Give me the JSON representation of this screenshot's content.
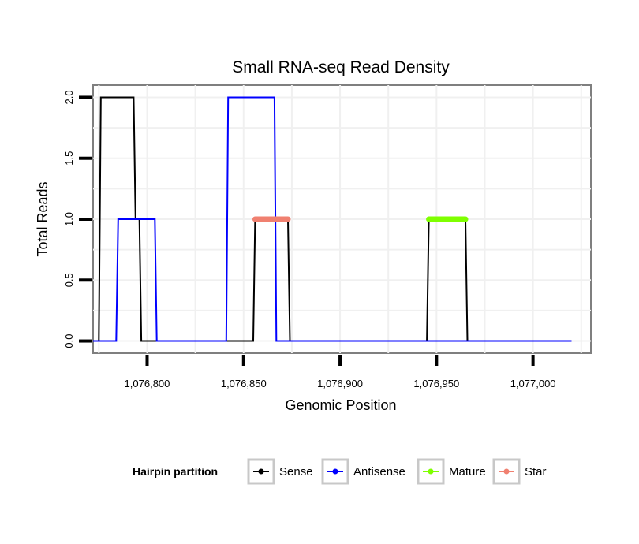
{
  "chart_data": {
    "type": "line",
    "title": "Small RNA-seq Read Density",
    "xlabel": "Genomic Position",
    "ylabel": "Total Reads",
    "xlim": [
      1076772,
      1077030
    ],
    "ylim": [
      -0.1,
      2.1
    ],
    "x_ticks": [
      1076800,
      1076850,
      1076900,
      1076950,
      1077000
    ],
    "x_tick_labels": [
      "1,076,800",
      "1,076,850",
      "1,076,900",
      "1,076,950",
      "1,077,000"
    ],
    "y_ticks": [
      0,
      0.5,
      1,
      1.5,
      2
    ],
    "y_tick_labels": [
      "0.0",
      "0.5",
      "1.0",
      "1.5",
      "2.0"
    ],
    "grid": true,
    "legend": {
      "title": "Hairpin partition",
      "position": "bottom",
      "entries": [
        "Sense",
        "Antisense",
        "Mature",
        "Star"
      ]
    },
    "series": [
      {
        "name": "Sense",
        "color": "#000000",
        "kind": "line",
        "x": [
          1076772,
          1076775,
          1076776,
          1076793,
          1076794,
          1076796,
          1076797,
          1076828,
          1076829,
          1076855,
          1076856,
          1076873,
          1076874,
          1076945,
          1076946,
          1076965,
          1076966,
          1077020
        ],
        "y": [
          0,
          0,
          2,
          2,
          1,
          1,
          0,
          0,
          0,
          0,
          1,
          1,
          0,
          0,
          1,
          1,
          0,
          0
        ]
      },
      {
        "name": "Antisense",
        "color": "#0000ff",
        "kind": "line",
        "x": [
          1076772,
          1076784,
          1076785,
          1076804,
          1076805,
          1076841,
          1076842,
          1076866,
          1076867,
          1076945,
          1076946,
          1076965,
          1076966,
          1077020
        ],
        "y": [
          0,
          0,
          1,
          1,
          0,
          0,
          2,
          2,
          0,
          0,
          0,
          0,
          0,
          0
        ]
      },
      {
        "name": "Mature",
        "color": "#7fff00",
        "kind": "segment",
        "x": [
          1076946,
          1076965
        ],
        "y": [
          1,
          1
        ]
      },
      {
        "name": "Star",
        "color": "#f08070",
        "kind": "segment",
        "x": [
          1076856,
          1076873
        ],
        "y": [
          1,
          1
        ]
      }
    ]
  }
}
